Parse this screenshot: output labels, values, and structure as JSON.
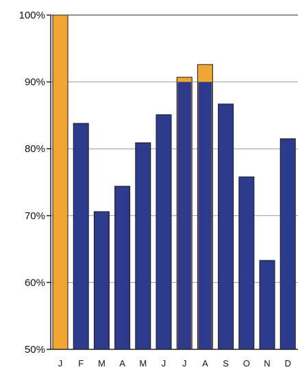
{
  "chart_data": {
    "type": "bar",
    "title": "",
    "xlabel": "",
    "ylabel": "",
    "ylim": [
      50,
      100
    ],
    "y_ticks": [
      "50%",
      "60%",
      "70%",
      "80%",
      "90%",
      "100%"
    ],
    "y_tick_values": [
      50,
      60,
      70,
      80,
      90,
      100
    ],
    "grid": true,
    "categories": [
      "J",
      "F",
      "M",
      "A",
      "M",
      "J",
      "J",
      "A",
      "S",
      "O",
      "N",
      "D"
    ],
    "values": [
      100,
      83.8,
      70.6,
      74.4,
      80.9,
      85.1,
      90.7,
      92.6,
      86.7,
      75.8,
      63.3,
      81.5
    ],
    "overlay_values": [
      null,
      null,
      null,
      null,
      null,
      null,
      90.0,
      90.0,
      null,
      null,
      null,
      null
    ],
    "colors": {
      "bar": "#2e3a8c",
      "highlight": "#f0a535",
      "outline": "#1a1a1a",
      "gridline": "#999999",
      "axis": "#222222"
    },
    "highlight_bars": [
      0,
      6,
      7
    ]
  }
}
